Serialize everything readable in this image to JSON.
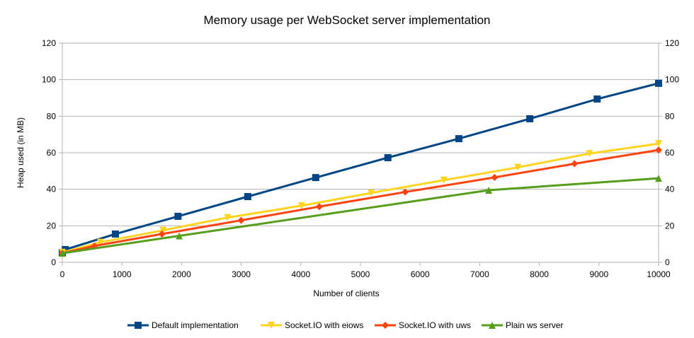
{
  "chart_data": {
    "type": "line",
    "title": "Memory usage per WebSocket server implementation",
    "xlabel": "Number of clients",
    "ylabel": "Heap used (in MB)",
    "xlim": [
      0,
      10000
    ],
    "ylim": [
      0,
      120
    ],
    "xticks": [
      0,
      1000,
      2000,
      3000,
      4000,
      5000,
      6000,
      7000,
      8000,
      9000,
      10000
    ],
    "yticks": [
      0,
      20,
      40,
      60,
      80,
      100,
      120
    ],
    "secondary_y_axis": true,
    "grid": "horizontal",
    "legend_position": "bottom",
    "series": [
      {
        "name": "Default implementation",
        "color": "#004586",
        "marker": "square",
        "x": [
          0,
          50,
          890,
          1940,
          3110,
          4250,
          5460,
          6650,
          7840,
          8970,
          10000
        ],
        "y": [
          5.4,
          7,
          15.5,
          25.2,
          36,
          46.4,
          57.3,
          67.7,
          78.6,
          89.4,
          98
        ]
      },
      {
        "name": "Socket.IO with eiows",
        "color": "#ffd320",
        "marker": "triangle-down",
        "x": [
          0,
          640,
          1690,
          2770,
          4010,
          5180,
          6400,
          7640,
          8840,
          10000
        ],
        "y": [
          5.5,
          11,
          17.5,
          24.5,
          31,
          38,
          45,
          52,
          59.5,
          65
        ]
      },
      {
        "name": "Socket.IO with uws",
        "color": "#ff420e",
        "marker": "diamond",
        "x": [
          0,
          540,
          1670,
          3000,
          4310,
          5750,
          7250,
          8590,
          10000
        ],
        "y": [
          5,
          9,
          15.5,
          23,
          30.5,
          38.5,
          46.5,
          54,
          61.5
        ]
      },
      {
        "name": "Plain ws server",
        "color": "#579d1c",
        "marker": "triangle-up",
        "x": [
          0,
          1960,
          7150,
          10000
        ],
        "y": [
          5,
          14.5,
          39.5,
          46
        ]
      }
    ]
  }
}
